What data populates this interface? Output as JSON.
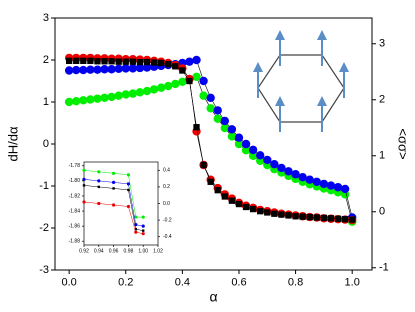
{
  "chart_data": [
    {
      "type": "line",
      "x_label": "α",
      "y_label": "dH/dα",
      "y2_label": "<σσ>",
      "x": [
        0,
        0.025,
        0.05,
        0.075,
        0.1,
        0.125,
        0.15,
        0.175,
        0.2,
        0.225,
        0.25,
        0.275,
        0.3,
        0.325,
        0.35,
        0.375,
        0.4,
        0.425,
        0.45,
        0.475,
        0.5,
        0.525,
        0.55,
        0.575,
        0.6,
        0.625,
        0.65,
        0.675,
        0.7,
        0.725,
        0.75,
        0.775,
        0.8,
        0.825,
        0.85,
        0.875,
        0.9,
        0.925,
        0.95,
        0.975,
        1.0
      ],
      "series": [
        {
          "color": "#00ee00",
          "marker": "circle",
          "values": [
            1.0,
            1.02,
            1.04,
            1.06,
            1.08,
            1.1,
            1.12,
            1.15,
            1.18,
            1.2,
            1.23,
            1.26,
            1.3,
            1.34,
            1.38,
            1.43,
            1.48,
            1.54,
            1.6,
            1.15,
            0.85,
            0.6,
            0.38,
            0.18,
            0.0,
            -0.15,
            -0.28,
            -0.4,
            -0.5,
            -0.6,
            -0.68,
            -0.76,
            -0.83,
            -0.9,
            -0.96,
            -1.01,
            -1.06,
            -1.1,
            -1.15,
            -1.2,
            -1.85
          ]
        },
        {
          "color": "#0000ee",
          "marker": "circle",
          "values": [
            1.75,
            1.76,
            1.76,
            1.77,
            1.77,
            1.78,
            1.78,
            1.79,
            1.8,
            1.8,
            1.81,
            1.82,
            1.84,
            1.86,
            1.88,
            1.9,
            1.93,
            1.96,
            2.0,
            1.5,
            1.1,
            0.8,
            0.55,
            0.35,
            0.15,
            0.0,
            -0.14,
            -0.27,
            -0.38,
            -0.48,
            -0.57,
            -0.65,
            -0.72,
            -0.79,
            -0.85,
            -0.9,
            -0.95,
            -0.99,
            -1.03,
            -1.07,
            -1.75
          ]
        },
        {
          "color": "#ee0000",
          "marker": "circle",
          "values": [
            2.05,
            2.05,
            2.05,
            2.05,
            2.04,
            2.04,
            2.03,
            2.03,
            2.02,
            2.02,
            2.01,
            2.0,
            1.98,
            1.96,
            1.93,
            1.88,
            1.8,
            1.55,
            0.3,
            -0.5,
            -0.85,
            -1.05,
            -1.2,
            -1.3,
            -1.4,
            -1.47,
            -1.52,
            -1.57,
            -1.6,
            -1.63,
            -1.66,
            -1.68,
            -1.7,
            -1.72,
            -1.74,
            -1.75,
            -1.77,
            -1.78,
            -1.79,
            -1.8,
            -1.81
          ]
        },
        {
          "color": "#000000",
          "marker": "square",
          "values": [
            1.98,
            1.98,
            1.98,
            1.98,
            1.97,
            1.97,
            1.97,
            1.96,
            1.96,
            1.96,
            1.95,
            1.95,
            1.94,
            1.93,
            1.9,
            1.85,
            1.75,
            1.5,
            0.4,
            -0.5,
            -0.9,
            -1.1,
            -1.25,
            -1.35,
            -1.43,
            -1.5,
            -1.55,
            -1.6,
            -1.63,
            -1.66,
            -1.68,
            -1.7,
            -1.72,
            -1.73,
            -1.74,
            -1.75,
            -1.76,
            -1.77,
            -1.78,
            -1.79,
            -1.8
          ]
        }
      ],
      "xlim": [
        -0.05,
        1.07
      ],
      "xticks": [
        {
          "value": 0,
          "label": "0.0"
        },
        0.2,
        0.4,
        0.6,
        0.8,
        {
          "value": 1,
          "label": "1.0"
        }
      ],
      "ylim": [
        -3,
        3
      ],
      "yticks": [
        -3,
        -2,
        -1,
        0,
        1,
        2,
        3
      ],
      "y2lim": [
        -1.04,
        3.46
      ],
      "y2ticks": [
        -1,
        0,
        1,
        2,
        3
      ]
    },
    {
      "type": "line",
      "x": [
        0.92,
        0.94,
        0.96,
        0.98,
        0.99,
        1.0
      ],
      "series": [
        {
          "color": "#00ee00",
          "marker": "circle",
          "values": [
            -1.786,
            -1.788,
            -1.79,
            -1.792,
            -1.848,
            -1.848
          ]
        },
        {
          "color": "#0000ee",
          "marker": "circle",
          "values": [
            -1.798,
            -1.8,
            -1.802,
            -1.804,
            -1.858,
            -1.86
          ]
        },
        {
          "color": "#000000",
          "marker": "square",
          "values": [
            -1.806,
            -1.808,
            -1.81,
            -1.812,
            -1.864,
            -1.866
          ]
        },
        {
          "color": "#ee0000",
          "marker": "circle",
          "values": [
            -1.828,
            -1.83,
            -1.832,
            -1.834,
            -1.868,
            -1.87
          ]
        }
      ],
      "xlim": [
        0.92,
        1.02
      ],
      "xticks": [
        0.92,
        0.94,
        0.96,
        0.98,
        {
          "value": 1,
          "label": "1.00"
        },
        1.02
      ],
      "ylim": [
        -1.885,
        -1.775
      ],
      "yticks": [
        -1.78,
        {
          "value": -1.8,
          "label": "-1.80"
        },
        -1.82,
        -1.84,
        -1.86,
        -1.88
      ],
      "y2lim": [
        -0.5,
        0.5
      ],
      "y2ticks": [
        0.4,
        0.2,
        {
          "value": 0,
          "label": "0.0"
        },
        -0.2,
        -0.4
      ]
    }
  ]
}
